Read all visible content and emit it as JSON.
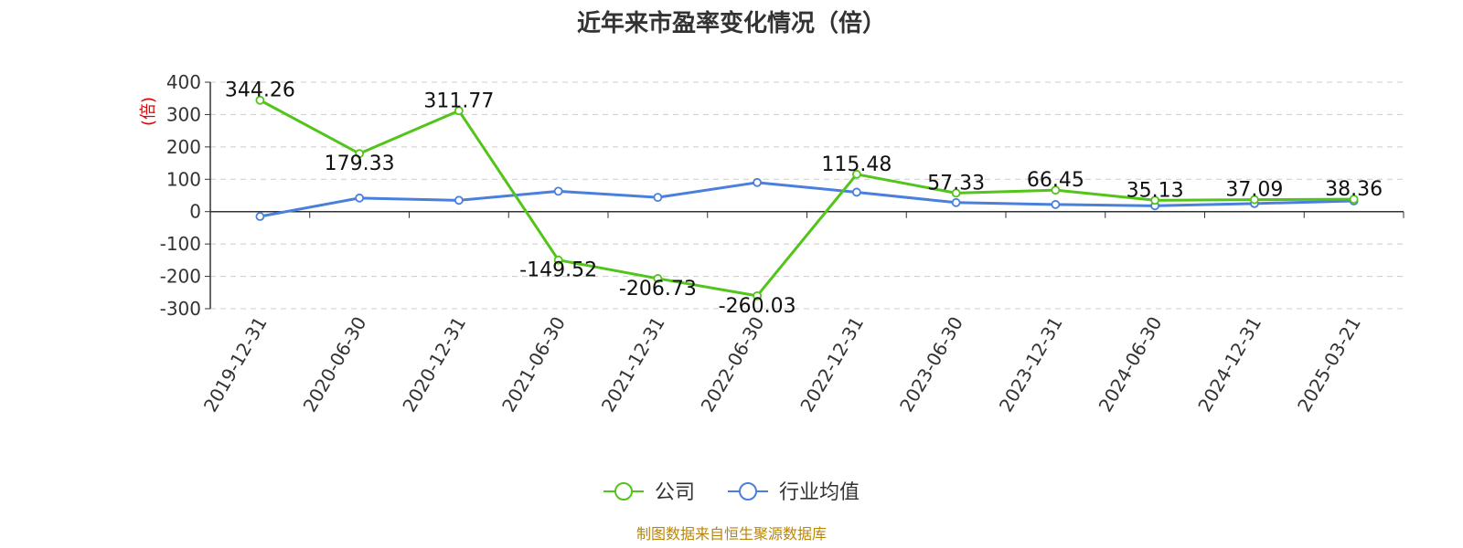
{
  "chart_data": {
    "type": "line",
    "title": "近年来市盈率变化情况（倍）",
    "ylabel": "(倍)",
    "ylim": [
      -300,
      400
    ],
    "yticks": [
      400,
      300,
      200,
      100,
      0,
      -100,
      -200,
      -300
    ],
    "grid": true,
    "legend_position": "bottom",
    "categories": [
      "2019-12-31",
      "2020-06-30",
      "2020-12-31",
      "2021-06-30",
      "2021-12-31",
      "2022-06-30",
      "2022-12-31",
      "2023-06-30",
      "2023-12-31",
      "2024-06-30",
      "2024-12-31",
      "2025-03-21"
    ],
    "series": [
      {
        "name": "公司",
        "color": "#52c41a",
        "values": [
          344.26,
          179.33,
          311.77,
          -149.52,
          -206.73,
          -260.03,
          115.48,
          57.33,
          66.45,
          35.13,
          37.09,
          38.36
        ],
        "labels": [
          "344.26",
          "179.33",
          "311.77",
          "-149.52",
          "-206.73",
          "-260.03",
          "115.48",
          "57.33",
          "66.45",
          "35.13",
          "37.09",
          "38.36"
        ]
      },
      {
        "name": "行业均值",
        "color": "#4a7fdc",
        "values": [
          -15,
          42,
          35,
          63,
          44,
          90,
          60,
          28,
          22,
          18,
          25,
          33
        ]
      }
    ],
    "source": "制图数据来自恒生聚源数据库"
  }
}
